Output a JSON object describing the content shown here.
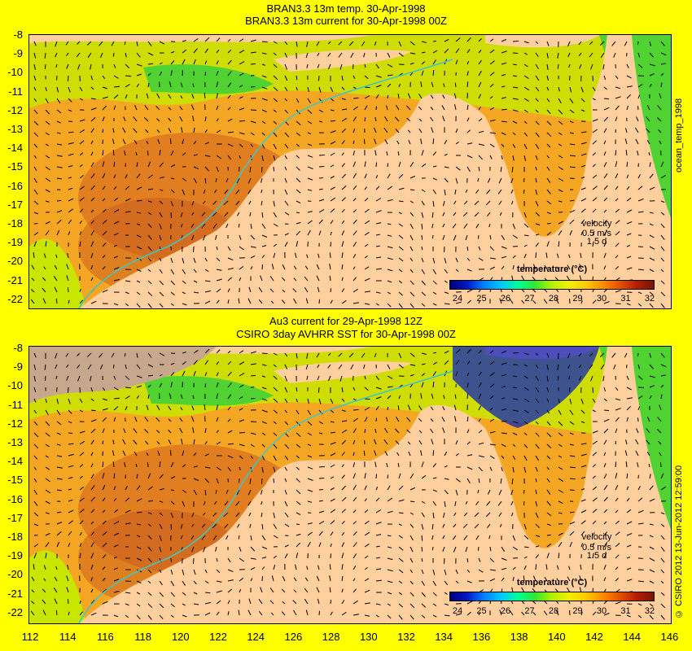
{
  "panel1": {
    "title_line1": "BRAN3.3 13m temp. 30-Apr-1998",
    "title_line2": "BRAN3.3 13m current for 30-Apr-1998 00Z",
    "side_label": "ocean_temp_1998",
    "velocity_label": "velocity",
    "velocity_scale": "0.5 m/s",
    "velocity_time": "1.5 d",
    "legend_title": "temperature (°C)"
  },
  "panel2": {
    "title_line1": "Au3 current for 29-Apr-1998 12Z",
    "title_line2": "CSIRO 3day AVHRR SST for 30-Apr-1998 00Z",
    "side_label": "© CSIRO 2012 13-Jun-2012 12:59:00",
    "velocity_label": "velocity",
    "velocity_scale": "0.5 m/s",
    "velocity_time": "1.5 d",
    "legend_title": "temperature (°C)"
  },
  "y_ticks": [
    "-8",
    "-9",
    "-10",
    "-11",
    "-12",
    "-13",
    "-14",
    "-15",
    "-16",
    "-17",
    "-18",
    "-19",
    "-20",
    "-21",
    "-22"
  ],
  "x_ticks": [
    "112",
    "114",
    "116",
    "118",
    "120",
    "122",
    "124",
    "126",
    "128",
    "130",
    "132",
    "134",
    "136",
    "138",
    "140",
    "142",
    "144",
    "146"
  ],
  "colorbar_ticks": [
    "24",
    "25",
    "26",
    "27",
    "28",
    "29",
    "30",
    "31",
    "32"
  ],
  "colors": {
    "background": "#ffff00",
    "land": "#ffcf9e",
    "missing": "#c8a88c",
    "scale": [
      "#000078",
      "#0018c8",
      "#0080ff",
      "#00c8ff",
      "#00ff96",
      "#32e632",
      "#b4f000",
      "#f0f000",
      "#ffc800",
      "#ff8c00",
      "#e65000",
      "#b41e00",
      "#781400"
    ]
  }
}
